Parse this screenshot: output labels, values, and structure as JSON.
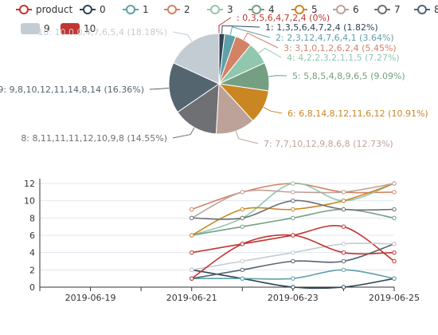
{
  "colors": [
    "#c23531",
    "#2f4554",
    "#61a0a8",
    "#d48265",
    "#91c7ae",
    "#749f83",
    "#ca8622",
    "#bda29a",
    "#6e7074",
    "#546570",
    "#c4ccd3"
  ],
  "chart_data": [
    {
      "type": "pie",
      "legend": [
        "product",
        "0",
        "1",
        "2",
        "3",
        "4",
        "5",
        "6",
        "7",
        "8",
        "9",
        "10"
      ],
      "slices": [
        {
          "name": "",
          "label": ": 0,3,5,6,4,7,2,4 (0%)",
          "value": 0
        },
        {
          "name": "1",
          "label": "1: 1,3,5,6,4,7,2,4 (1.82%)",
          "value": 1
        },
        {
          "name": "2",
          "label": "2: 2,3,12,4,7,6,4,1 (3.64%)",
          "value": 2
        },
        {
          "name": "3",
          "label": "3: 3,1,0,1,2,6,2,4 (5.45%)",
          "value": 3
        },
        {
          "name": "4",
          "label": "4: 4,2,2,3,2,1,1,5 (7.27%)",
          "value": 4
        },
        {
          "name": "5",
          "label": "5: 5,8,5,4,8,9,6,5 (9.09%)",
          "value": 5
        },
        {
          "name": "6",
          "label": "6: 6,8,14,8,12,11,6,12 (10.91%)",
          "value": 6
        },
        {
          "name": "7",
          "label": "7: 7,7,10,12,9,8,6,8 (12.73%)",
          "value": 7
        },
        {
          "name": "8",
          "label": "8: 8,11,11,11,12,10,9,8 (14.55%)",
          "value": 8
        },
        {
          "name": "9",
          "label": "9: 9,8,10,12,11,14,8,14 (16.36%)",
          "value": 9
        },
        {
          "name": "10",
          "label": "10: 10,0,0,4,7,6,5,4 (18.18%)",
          "value": 10
        }
      ]
    },
    {
      "type": "line",
      "x_labels": [
        "2019-06-19",
        "2019-06-21",
        "2019-06-23",
        "2019-06-25"
      ],
      "x_range": [
        "2019-06-18",
        "2019-06-25"
      ],
      "ylim": [
        0,
        12
      ],
      "y_ticks": [
        0,
        2,
        4,
        6,
        8,
        10,
        12
      ],
      "series": [
        {
          "name": "product",
          "points": [
            [
              "2019-06-21",
              4
            ],
            [
              "2019-06-22",
              5
            ],
            [
              "2019-06-23",
              6
            ],
            [
              "2019-06-24",
              7
            ],
            [
              "2019-06-25",
              3
            ]
          ]
        },
        {
          "name": "0",
          "points": [
            [
              "2019-06-21",
              2
            ],
            [
              "2019-06-22",
              1
            ],
            [
              "2019-06-23",
              0
            ],
            [
              "2019-06-24",
              0
            ],
            [
              "2019-06-25",
              1
            ]
          ]
        },
        {
          "name": "1",
          "points": [
            [
              "2019-06-21",
              1
            ],
            [
              "2019-06-22",
              1
            ],
            [
              "2019-06-23",
              1
            ],
            [
              "2019-06-24",
              2
            ],
            [
              "2019-06-25",
              1
            ]
          ]
        },
        {
          "name": "2",
          "points": [
            [
              "2019-06-21",
              9
            ],
            [
              "2019-06-22",
              11
            ],
            [
              "2019-06-23",
              12
            ],
            [
              "2019-06-24",
              11
            ],
            [
              "2019-06-25",
              11
            ]
          ]
        },
        {
          "name": "3",
          "points": [
            [
              "2019-06-21",
              6
            ],
            [
              "2019-06-22",
              8
            ],
            [
              "2019-06-23",
              12
            ],
            [
              "2019-06-24",
              10
            ],
            [
              "2019-06-25",
              12
            ]
          ]
        },
        {
          "name": "4",
          "points": [
            [
              "2019-06-21",
              6
            ],
            [
              "2019-06-22",
              7
            ],
            [
              "2019-06-23",
              8
            ],
            [
              "2019-06-24",
              9
            ],
            [
              "2019-06-25",
              8
            ]
          ]
        },
        {
          "name": "5",
          "points": [
            [
              "2019-06-21",
              6
            ],
            [
              "2019-06-22",
              9
            ],
            [
              "2019-06-23",
              9
            ],
            [
              "2019-06-24",
              10
            ],
            [
              "2019-06-25",
              12
            ]
          ]
        },
        {
          "name": "6",
          "points": [
            [
              "2019-06-21",
              8
            ],
            [
              "2019-06-22",
              11
            ],
            [
              "2019-06-23",
              11
            ],
            [
              "2019-06-24",
              11
            ],
            [
              "2019-06-25",
              12
            ]
          ]
        },
        {
          "name": "7",
          "points": [
            [
              "2019-06-21",
              8
            ],
            [
              "2019-06-22",
              8
            ],
            [
              "2019-06-23",
              10
            ],
            [
              "2019-06-24",
              9
            ],
            [
              "2019-06-25",
              9
            ]
          ]
        },
        {
          "name": "8",
          "points": [
            [
              "2019-06-21",
              1
            ],
            [
              "2019-06-22",
              2
            ],
            [
              "2019-06-23",
              3
            ],
            [
              "2019-06-24",
              3
            ],
            [
              "2019-06-25",
              5
            ]
          ]
        },
        {
          "name": "9",
          "points": [
            [
              "2019-06-21",
              2
            ],
            [
              "2019-06-22",
              3
            ],
            [
              "2019-06-23",
              4
            ],
            [
              "2019-06-24",
              5
            ],
            [
              "2019-06-25",
              5
            ]
          ]
        },
        {
          "name": "10",
          "points": [
            [
              "2019-06-21",
              1
            ],
            [
              "2019-06-22",
              5
            ],
            [
              "2019-06-23",
              6
            ],
            [
              "2019-06-24",
              4
            ],
            [
              "2019-06-25",
              4
            ]
          ]
        }
      ]
    }
  ]
}
